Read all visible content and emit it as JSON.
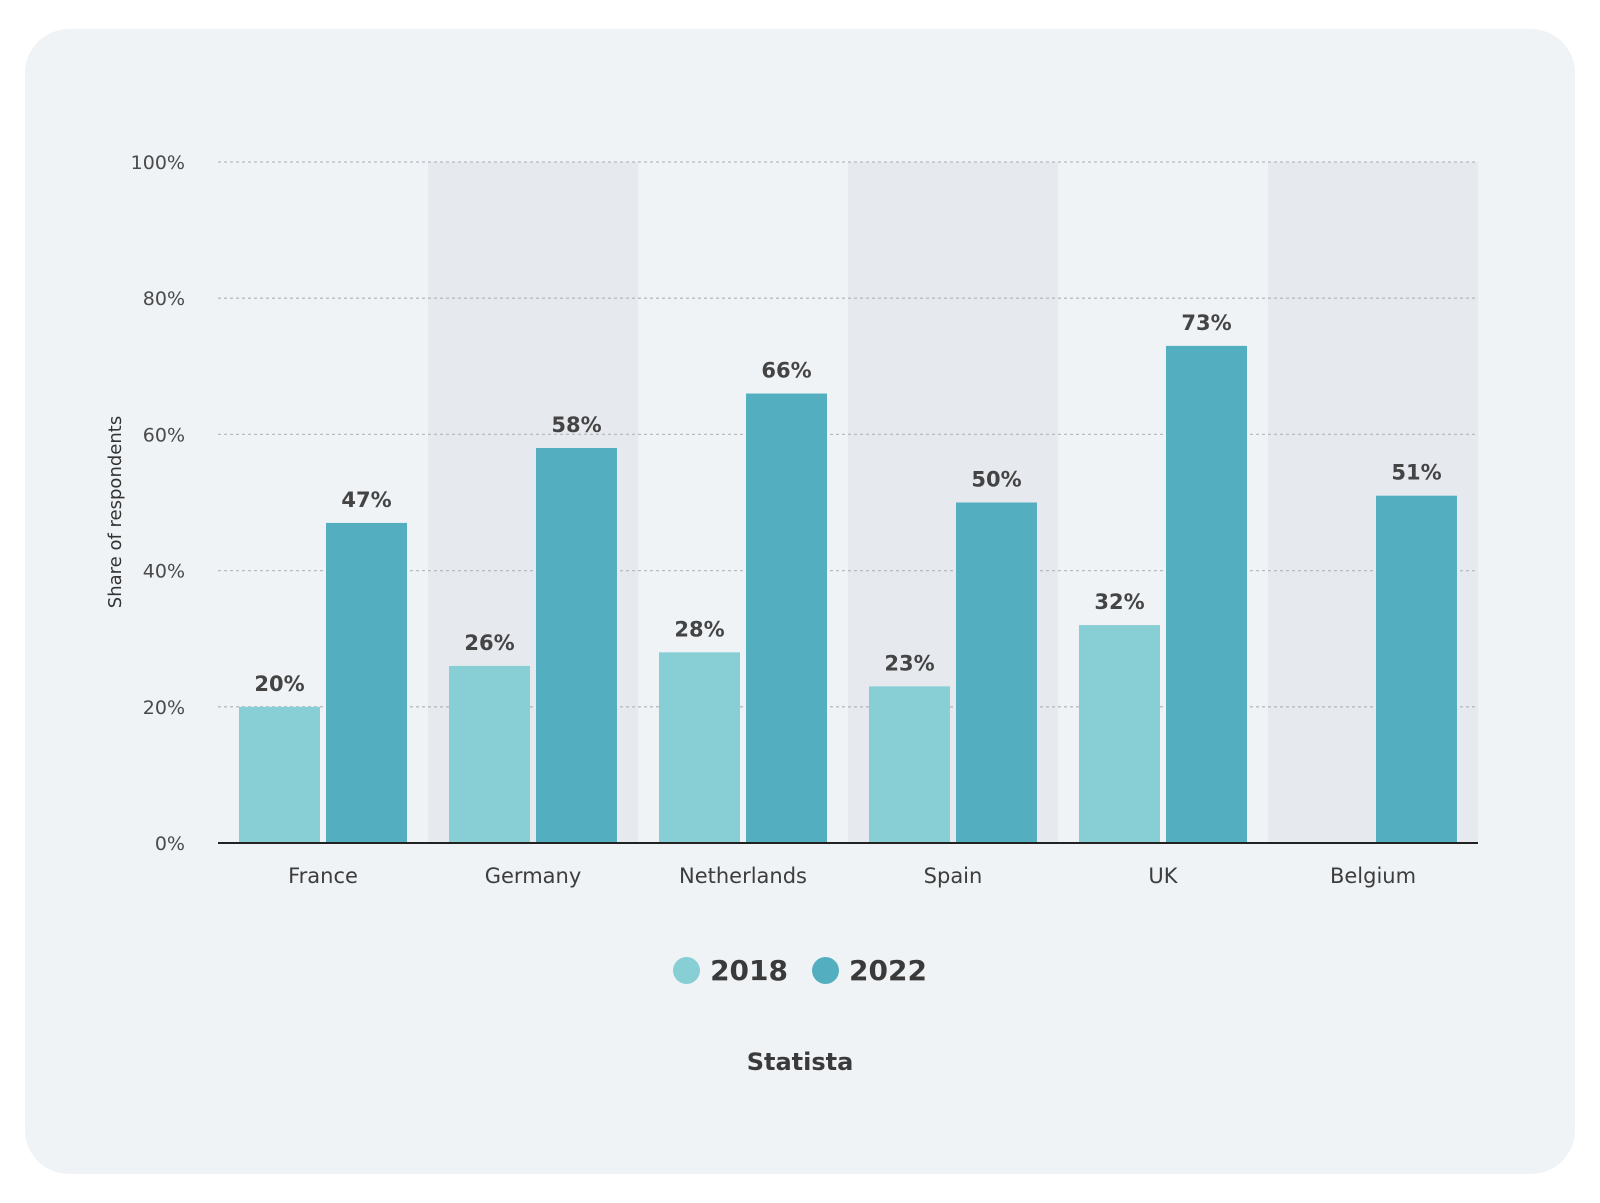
{
  "colors": {
    "s2018": "#87ced5",
    "s2022": "#53afc0",
    "band": "#e6eaee",
    "grid": "#b6bcc2",
    "axis": "#222222"
  },
  "source": "Statista",
  "chart_data": {
    "type": "bar",
    "categories": [
      "France",
      "Germany",
      "Netherlands",
      "Spain",
      "UK",
      "Belgium"
    ],
    "series": [
      {
        "name": "2018",
        "values": [
          20,
          26,
          28,
          23,
          32,
          null
        ],
        "color": "#87ced5"
      },
      {
        "name": "2022",
        "values": [
          47,
          58,
          66,
          50,
          73,
          51
        ],
        "color": "#53afc0"
      }
    ],
    "value_suffix": "%",
    "ylabel": "Share of respondents",
    "ylim": [
      0,
      100
    ],
    "yticks": [
      "0%",
      "20%",
      "40%",
      "60%",
      "80%",
      "100%"
    ],
    "grid": true,
    "legend": "bottom-center"
  }
}
